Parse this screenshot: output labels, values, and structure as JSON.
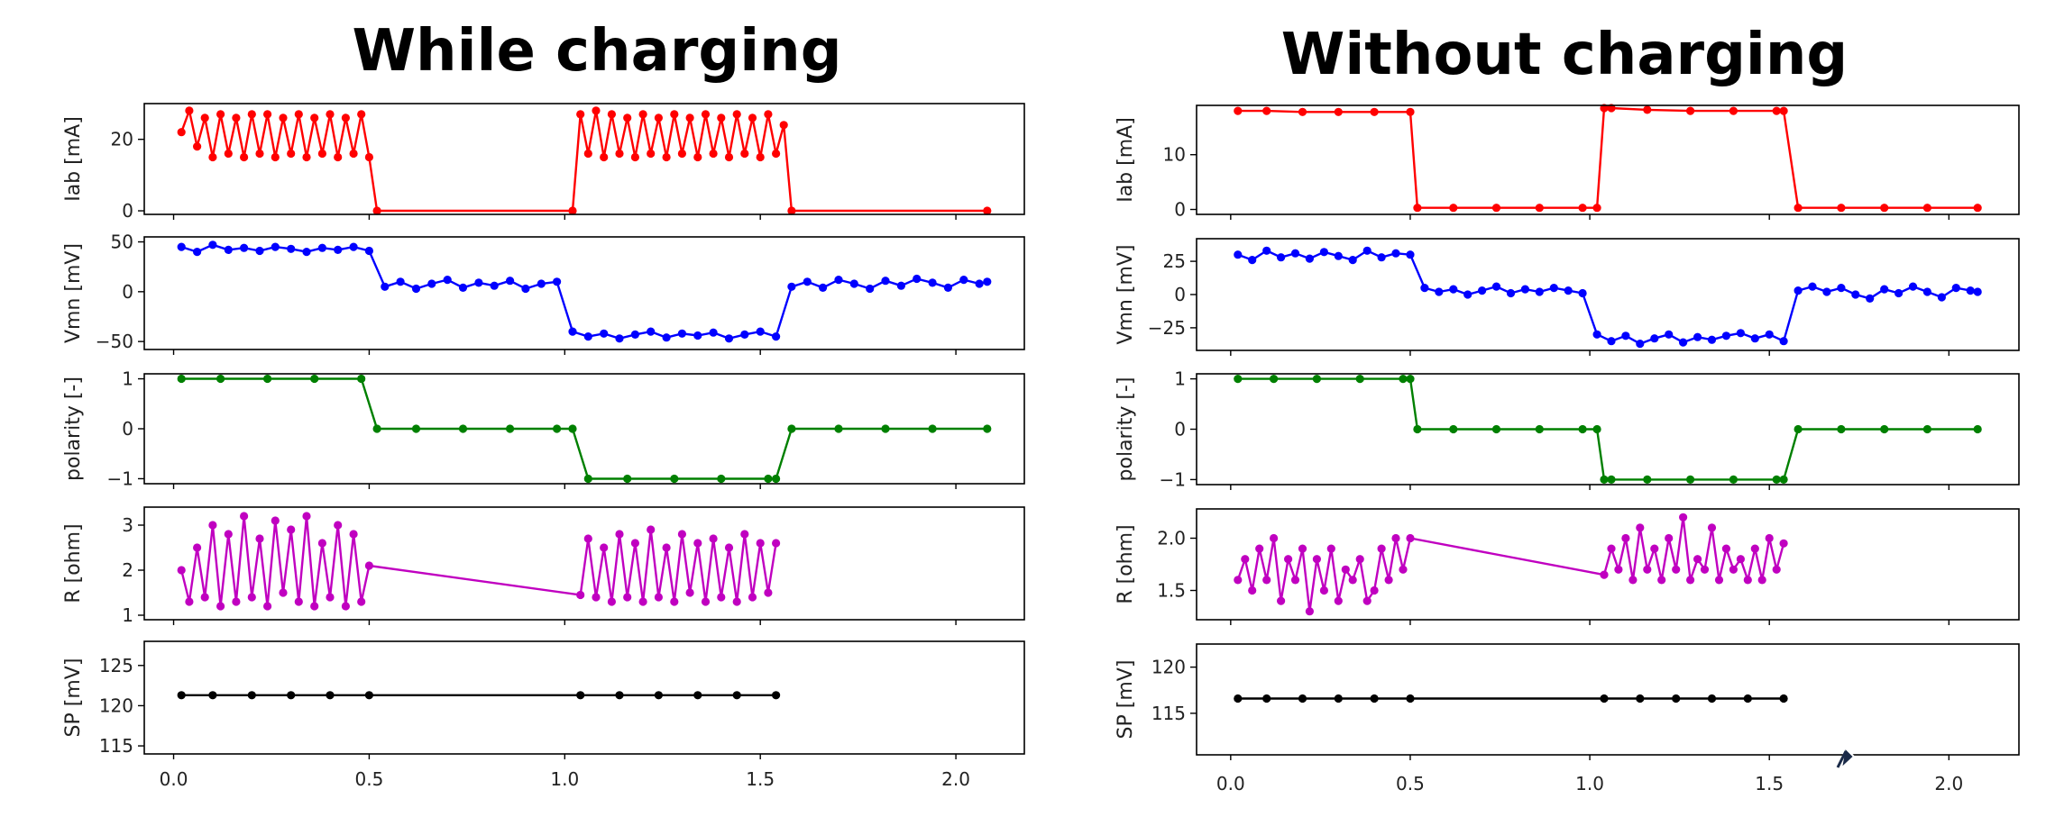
{
  "chart_data": [
    {
      "type": "line",
      "title": "While charging",
      "x_ticks": [
        "0.0",
        "0.5",
        "1.0",
        "1.5",
        "2.0"
      ],
      "xlim": [
        -0.075,
        2.175
      ],
      "panels": [
        {
          "ylabel": "Iab [mA]",
          "color": "#ff0000",
          "ylim": [
            -1,
            30
          ],
          "yticks": [
            0,
            20
          ],
          "tick_labels": [
            "0",
            "20"
          ],
          "x": [
            0.02,
            0.04,
            0.06,
            0.08,
            0.1,
            0.12,
            0.14,
            0.16,
            0.18,
            0.2,
            0.22,
            0.24,
            0.26,
            0.28,
            0.3,
            0.32,
            0.34,
            0.36,
            0.38,
            0.4,
            0.42,
            0.44,
            0.46,
            0.48,
            0.5,
            0.52,
            1.02,
            1.04,
            1.06,
            1.08,
            1.1,
            1.12,
            1.14,
            1.16,
            1.18,
            1.2,
            1.22,
            1.24,
            1.26,
            1.28,
            1.3,
            1.32,
            1.34,
            1.36,
            1.38,
            1.4,
            1.42,
            1.44,
            1.46,
            1.48,
            1.5,
            1.52,
            1.54,
            1.56,
            1.58,
            2.08
          ],
          "y": [
            22,
            28,
            18,
            26,
            15,
            27,
            16,
            26,
            15,
            27,
            16,
            27,
            15,
            26,
            16,
            27,
            15,
            26,
            16,
            27,
            15,
            26,
            16,
            27,
            15,
            0,
            0,
            27,
            16,
            28,
            15,
            27,
            16,
            26,
            15,
            27,
            16,
            26,
            15,
            27,
            16,
            26,
            15,
            27,
            16,
            26,
            15,
            27,
            16,
            26,
            15,
            27,
            16,
            24,
            0,
            0
          ]
        },
        {
          "ylabel": "Vmn [mV]",
          "color": "#0000ff",
          "ylim": [
            -58,
            55
          ],
          "yticks": [
            -50,
            0,
            50
          ],
          "tick_labels": [
            "−50",
            "0",
            "50"
          ],
          "x": [
            0.02,
            0.06,
            0.1,
            0.14,
            0.18,
            0.22,
            0.26,
            0.3,
            0.34,
            0.38,
            0.42,
            0.46,
            0.5,
            0.54,
            0.58,
            0.62,
            0.66,
            0.7,
            0.74,
            0.78,
            0.82,
            0.86,
            0.9,
            0.94,
            0.98,
            1.02,
            1.06,
            1.1,
            1.14,
            1.18,
            1.22,
            1.26,
            1.3,
            1.34,
            1.38,
            1.42,
            1.46,
            1.5,
            1.54,
            1.58,
            1.62,
            1.66,
            1.7,
            1.74,
            1.78,
            1.82,
            1.86,
            1.9,
            1.94,
            1.98,
            2.02,
            2.06,
            2.08
          ],
          "y": [
            45,
            40,
            47,
            42,
            44,
            41,
            45,
            43,
            40,
            44,
            42,
            45,
            41,
            5,
            10,
            3,
            8,
            12,
            4,
            9,
            6,
            11,
            3,
            8,
            10,
            -40,
            -45,
            -42,
            -47,
            -43,
            -40,
            -46,
            -42,
            -44,
            -41,
            -47,
            -43,
            -40,
            -45,
            5,
            10,
            4,
            12,
            8,
            3,
            11,
            6,
            13,
            9,
            4,
            12,
            8,
            10
          ]
        },
        {
          "ylabel": "polarity [-]",
          "color": "#008000",
          "ylim": [
            -1.1,
            1.1
          ],
          "yticks": [
            -1,
            0,
            1
          ],
          "tick_labels": [
            "−1",
            "0",
            "1"
          ],
          "x": [
            0.02,
            0.12,
            0.24,
            0.36,
            0.48,
            0.52,
            0.62,
            0.74,
            0.86,
            0.98,
            1.02,
            1.06,
            1.16,
            1.28,
            1.4,
            1.52,
            1.54,
            1.58,
            1.7,
            1.82,
            1.94,
            2.08
          ],
          "y": [
            1,
            1,
            1,
            1,
            1,
            0,
            0,
            0,
            0,
            0,
            0,
            -1,
            -1,
            -1,
            -1,
            -1,
            -1,
            0,
            0,
            0,
            0,
            0
          ]
        },
        {
          "ylabel": "R [ohm]",
          "color": "#c000c0",
          "ylim": [
            0.9,
            3.4
          ],
          "yticks": [
            1,
            2,
            3
          ],
          "tick_labels": [
            "1",
            "2",
            "3"
          ],
          "x": [
            0.02,
            0.04,
            0.06,
            0.08,
            0.1,
            0.12,
            0.14,
            0.16,
            0.18,
            0.2,
            0.22,
            0.24,
            0.26,
            0.28,
            0.3,
            0.32,
            0.34,
            0.36,
            0.38,
            0.4,
            0.42,
            0.44,
            0.46,
            0.48,
            0.5,
            1.04,
            1.06,
            1.08,
            1.1,
            1.12,
            1.14,
            1.16,
            1.18,
            1.2,
            1.22,
            1.24,
            1.26,
            1.28,
            1.3,
            1.32,
            1.34,
            1.36,
            1.38,
            1.4,
            1.42,
            1.44,
            1.46,
            1.48,
            1.5,
            1.52,
            1.54
          ],
          "y": [
            2.0,
            1.3,
            2.5,
            1.4,
            3.0,
            1.2,
            2.8,
            1.3,
            3.2,
            1.4,
            2.7,
            1.2,
            3.1,
            1.5,
            2.9,
            1.3,
            3.2,
            1.2,
            2.6,
            1.4,
            3.0,
            1.2,
            2.8,
            1.3,
            2.1,
            1.45,
            2.7,
            1.4,
            2.5,
            1.3,
            2.8,
            1.4,
            2.6,
            1.3,
            2.9,
            1.4,
            2.5,
            1.3,
            2.8,
            1.5,
            2.6,
            1.3,
            2.7,
            1.4,
            2.5,
            1.3,
            2.8,
            1.4,
            2.6,
            1.5,
            2.6
          ]
        },
        {
          "ylabel": "SP [mV]",
          "color": "#000000",
          "ylim": [
            114,
            128
          ],
          "yticks": [
            115,
            120,
            125
          ],
          "tick_labels": [
            "115",
            "120",
            "125"
          ],
          "x": [
            0.02,
            0.1,
            0.2,
            0.3,
            0.4,
            0.5,
            1.04,
            1.14,
            1.24,
            1.34,
            1.44,
            1.54
          ],
          "y": [
            121.3,
            121.3,
            121.3,
            121.3,
            121.3,
            121.3,
            121.3,
            121.3,
            121.3,
            121.3,
            121.3,
            121.3
          ]
        }
      ]
    },
    {
      "type": "line",
      "title": "Without charging",
      "x_ticks": [
        "0.0",
        "0.5",
        "1.0",
        "1.5",
        "2.0"
      ],
      "xlim": [
        -0.095,
        2.195
      ],
      "panels": [
        {
          "ylabel": "Iab [mA]",
          "color": "#ff0000",
          "ylim": [
            -0.9,
            19.0
          ],
          "yticks": [
            0,
            10
          ],
          "tick_labels": [
            "0",
            "10"
          ],
          "x": [
            0.02,
            0.1,
            0.2,
            0.3,
            0.4,
            0.5,
            0.52,
            0.62,
            0.74,
            0.86,
            0.98,
            1.02,
            1.04,
            1.06,
            1.16,
            1.28,
            1.4,
            1.52,
            1.54,
            1.58,
            1.7,
            1.82,
            1.94,
            2.08
          ],
          "y": [
            18,
            18,
            17.8,
            17.8,
            17.8,
            17.8,
            0.3,
            0.3,
            0.3,
            0.3,
            0.3,
            0.3,
            18.5,
            18.5,
            18.2,
            18,
            18,
            18,
            18,
            0.3,
            0.3,
            0.3,
            0.3,
            0.3
          ]
        },
        {
          "ylabel": "Vmn [mV]",
          "color": "#0000ff",
          "ylim": [
            -42,
            42
          ],
          "yticks": [
            -25,
            0,
            25
          ],
          "tick_labels": [
            "−25",
            "0",
            "25"
          ],
          "x": [
            0.02,
            0.06,
            0.1,
            0.14,
            0.18,
            0.22,
            0.26,
            0.3,
            0.34,
            0.38,
            0.42,
            0.46,
            0.5,
            0.54,
            0.58,
            0.62,
            0.66,
            0.7,
            0.74,
            0.78,
            0.82,
            0.86,
            0.9,
            0.94,
            0.98,
            1.02,
            1.06,
            1.1,
            1.14,
            1.18,
            1.22,
            1.26,
            1.3,
            1.34,
            1.38,
            1.42,
            1.46,
            1.5,
            1.54,
            1.58,
            1.62,
            1.66,
            1.7,
            1.74,
            1.78,
            1.82,
            1.86,
            1.9,
            1.94,
            1.98,
            2.02,
            2.06,
            2.08
          ],
          "y": [
            30,
            26,
            33,
            28,
            31,
            27,
            32,
            29,
            26,
            33,
            28,
            31,
            30,
            5,
            2,
            4,
            0,
            3,
            6,
            1,
            4,
            2,
            5,
            3,
            1,
            -30,
            -35,
            -31,
            -37,
            -33,
            -30,
            -36,
            -32,
            -34,
            -31,
            -29,
            -33,
            -30,
            -35,
            3,
            6,
            2,
            5,
            0,
            -3,
            4,
            1,
            6,
            2,
            -2,
            5,
            3,
            2
          ]
        },
        {
          "ylabel": "polarity [-]",
          "color": "#008000",
          "ylim": [
            -1.1,
            1.1
          ],
          "yticks": [
            -1,
            0,
            1
          ],
          "tick_labels": [
            "−1",
            "0",
            "1"
          ],
          "x": [
            0.02,
            0.12,
            0.24,
            0.36,
            0.48,
            0.5,
            0.52,
            0.62,
            0.74,
            0.86,
            0.98,
            1.02,
            1.04,
            1.06,
            1.16,
            1.28,
            1.4,
            1.52,
            1.54,
            1.58,
            1.7,
            1.82,
            1.94,
            2.08
          ],
          "y": [
            1,
            1,
            1,
            1,
            1,
            1,
            0,
            0,
            0,
            0,
            0,
            0,
            -1,
            -1,
            -1,
            -1,
            -1,
            -1,
            -1,
            0,
            0,
            0,
            0,
            0
          ]
        },
        {
          "ylabel": "R [ohm]",
          "color": "#c000c0",
          "ylim": [
            1.22,
            2.28
          ],
          "yticks": [
            1.5,
            2.0
          ],
          "tick_labels": [
            "1.5",
            "2.0"
          ],
          "x": [
            0.02,
            0.04,
            0.06,
            0.08,
            0.1,
            0.12,
            0.14,
            0.16,
            0.18,
            0.2,
            0.22,
            0.24,
            0.26,
            0.28,
            0.3,
            0.32,
            0.34,
            0.36,
            0.38,
            0.4,
            0.42,
            0.44,
            0.46,
            0.48,
            0.5,
            1.04,
            1.06,
            1.08,
            1.1,
            1.12,
            1.14,
            1.16,
            1.18,
            1.2,
            1.22,
            1.24,
            1.26,
            1.28,
            1.3,
            1.32,
            1.34,
            1.36,
            1.38,
            1.4,
            1.42,
            1.44,
            1.46,
            1.48,
            1.5,
            1.52,
            1.54
          ],
          "y": [
            1.6,
            1.8,
            1.5,
            1.9,
            1.6,
            2.0,
            1.4,
            1.8,
            1.6,
            1.9,
            1.3,
            1.8,
            1.5,
            1.9,
            1.4,
            1.7,
            1.6,
            1.8,
            1.4,
            1.5,
            1.9,
            1.6,
            2.0,
            1.7,
            2.0,
            1.65,
            1.9,
            1.7,
            2.0,
            1.6,
            2.1,
            1.7,
            1.9,
            1.6,
            2.0,
            1.7,
            2.2,
            1.6,
            1.8,
            1.7,
            2.1,
            1.6,
            1.9,
            1.7,
            1.8,
            1.6,
            1.9,
            1.6,
            2.0,
            1.7,
            1.95
          ]
        },
        {
          "ylabel": "SP [mV]",
          "color": "#000000",
          "ylim": [
            110.5,
            122.5
          ],
          "yticks": [
            115,
            120
          ],
          "tick_labels": [
            "115",
            "120"
          ],
          "x": [
            0.02,
            0.1,
            0.2,
            0.3,
            0.4,
            0.5,
            1.04,
            1.14,
            1.24,
            1.34,
            1.44,
            1.54
          ],
          "y": [
            116.6,
            116.6,
            116.6,
            116.6,
            116.6,
            116.6,
            116.6,
            116.6,
            116.6,
            116.6,
            116.6,
            116.6
          ]
        }
      ]
    }
  ]
}
